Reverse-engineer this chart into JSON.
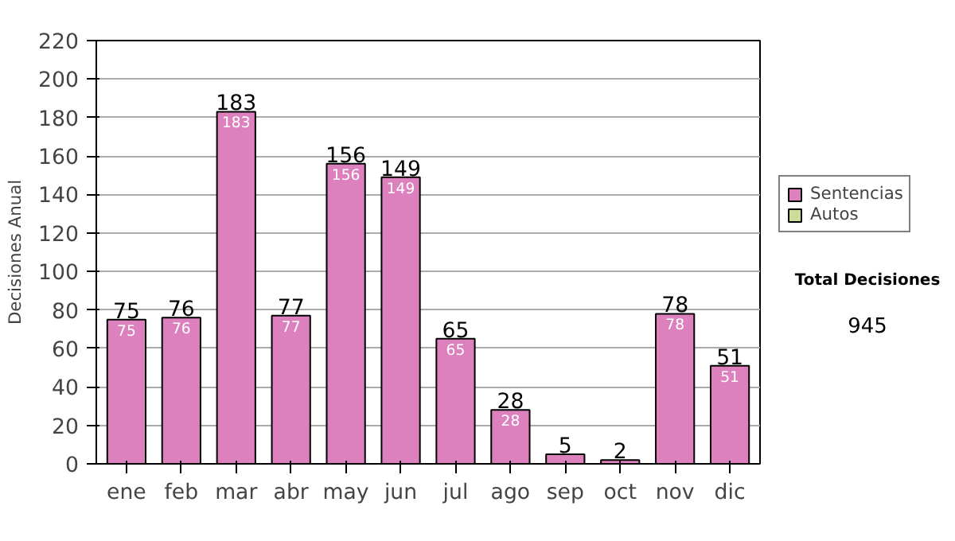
{
  "chart_data": {
    "type": "bar",
    "stacked": true,
    "ylabel": "Decisiones Anual",
    "categories": [
      "ene",
      "feb",
      "mar",
      "abr",
      "may",
      "jun",
      "jul",
      "ago",
      "sep",
      "oct",
      "nov",
      "dic"
    ],
    "series": [
      {
        "name": "Sentencias",
        "color": "#dd80be",
        "values": [
          75,
          76,
          183,
          77,
          156,
          149,
          65,
          28,
          5,
          2,
          78,
          51
        ],
        "value_labels": [
          "75",
          "76",
          "183",
          "77",
          "156",
          "149",
          "65",
          "28",
          null,
          null,
          "78",
          "51"
        ]
      },
      {
        "name": "Autos",
        "color": "#ccdd99",
        "values": [
          null,
          null,
          null,
          null,
          null,
          null,
          null,
          null,
          null,
          null,
          null,
          null
        ]
      }
    ],
    "totals": [
      "75",
      "76",
      "183",
      "77",
      "156",
      "149",
      "65",
      "28",
      "5",
      "2",
      "78",
      "51"
    ],
    "ylim": [
      0,
      220
    ],
    "yticks": [
      0,
      20,
      40,
      60,
      80,
      100,
      120,
      140,
      160,
      180,
      200,
      220
    ],
    "grid": "y",
    "legend": "right",
    "annotations": [
      "Total Decisiones",
      "945"
    ]
  }
}
